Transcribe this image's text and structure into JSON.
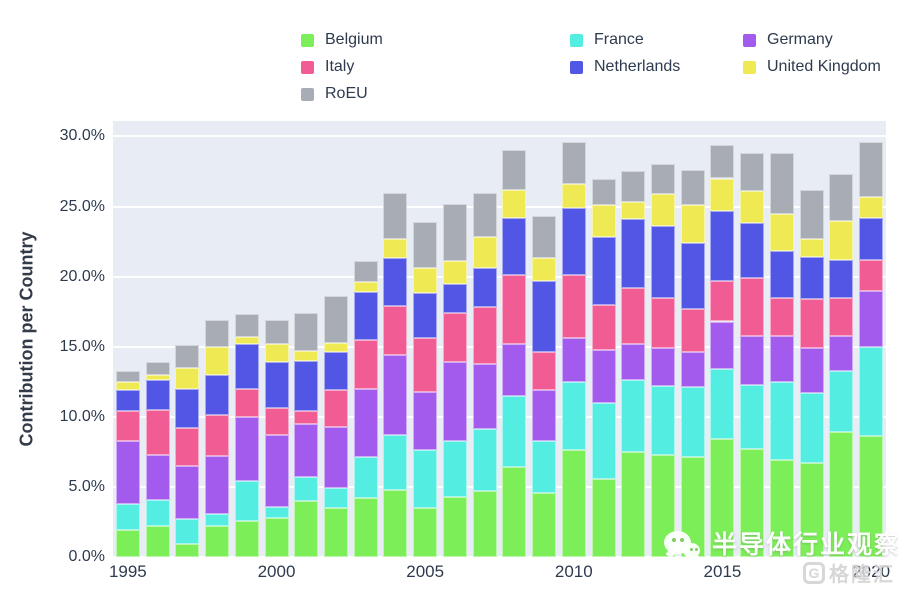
{
  "chart": {
    "y_axis_title": "Contribution per Country",
    "y_max": 31.1,
    "plot_bg": "#e8ecf4",
    "grid_color": "#ffffff",
    "y_ticks": [
      {
        "value": 0,
        "label": "0.0%"
      },
      {
        "value": 5,
        "label": "5.0%"
      },
      {
        "value": 10,
        "label": "10.0%"
      },
      {
        "value": 15,
        "label": "15.0%"
      },
      {
        "value": 20,
        "label": "20.0%"
      },
      {
        "value": 25,
        "label": "25.0%"
      },
      {
        "value": 30,
        "label": "30.0%"
      }
    ],
    "x_ticks": [
      {
        "year": 1995,
        "label": "1995"
      },
      {
        "year": 2000,
        "label": "2000"
      },
      {
        "year": 2005,
        "label": "2005"
      },
      {
        "year": 2010,
        "label": "2010"
      },
      {
        "year": 2015,
        "label": "2015"
      },
      {
        "year": 2020,
        "label": "2020"
      }
    ]
  },
  "chart_data": {
    "type": "bar",
    "stacked": true,
    "title": "",
    "xlabel": "",
    "ylabel": "Contribution per Country",
    "ylim": [
      0,
      30
    ],
    "grid": true,
    "legend_position": "top",
    "categories": [
      1995,
      1996,
      1997,
      1998,
      1999,
      2000,
      2001,
      2002,
      2003,
      2004,
      2005,
      2006,
      2007,
      2008,
      2009,
      2010,
      2011,
      2012,
      2013,
      2014,
      2015,
      2016,
      2017,
      2018,
      2019,
      2020
    ],
    "value_unit": "percent",
    "series": [
      {
        "name": "Belgium",
        "color": "#7cee58",
        "values": [
          1.9,
          2.2,
          0.9,
          2.2,
          2.6,
          2.8,
          4.0,
          3.5,
          4.2,
          4.8,
          3.5,
          4.3,
          4.7,
          6.4,
          4.6,
          7.6,
          5.6,
          7.5,
          7.3,
          7.1,
          8.4,
          7.7,
          6.9,
          6.7,
          8.9,
          8.6
        ]
      },
      {
        "name": "France",
        "color": "#53ede1",
        "values": [
          1.9,
          1.9,
          1.8,
          0.9,
          2.8,
          0.8,
          1.7,
          1.4,
          2.9,
          3.9,
          4.1,
          4.0,
          4.4,
          5.1,
          3.7,
          4.9,
          5.4,
          5.1,
          4.9,
          5.0,
          5.0,
          4.6,
          5.6,
          5.0,
          4.4,
          6.4
        ]
      },
      {
        "name": "Germany",
        "color": "#a35bee",
        "values": [
          4.5,
          3.2,
          3.8,
          4.1,
          4.6,
          5.1,
          3.8,
          4.4,
          4.9,
          5.7,
          4.2,
          5.6,
          4.7,
          3.7,
          3.6,
          3.1,
          3.8,
          2.6,
          2.7,
          2.5,
          3.4,
          3.5,
          3.3,
          3.2,
          2.5,
          4.0
        ]
      },
      {
        "name": "Italy",
        "color": "#f05c93",
        "values": [
          2.1,
          3.2,
          2.7,
          2.9,
          2.0,
          1.9,
          0.9,
          2.6,
          3.5,
          3.5,
          3.8,
          3.5,
          4.0,
          4.9,
          2.7,
          4.5,
          3.2,
          4.0,
          3.6,
          3.1,
          2.9,
          4.1,
          2.7,
          3.5,
          2.7,
          2.2
        ]
      },
      {
        "name": "Netherlands",
        "color": "#5156e4",
        "values": [
          1.5,
          2.1,
          2.8,
          2.9,
          3.2,
          3.3,
          3.6,
          2.7,
          3.4,
          3.4,
          3.2,
          2.1,
          2.8,
          4.1,
          5.1,
          4.8,
          4.8,
          4.9,
          5.1,
          4.7,
          5.0,
          3.9,
          3.3,
          3.0,
          2.7,
          3.0
        ]
      },
      {
        "name": "United Kingdom",
        "color": "#efea54",
        "values": [
          0.6,
          0.4,
          1.5,
          2.0,
          0.5,
          1.3,
          0.7,
          0.7,
          0.7,
          1.4,
          1.8,
          1.6,
          2.2,
          2.0,
          1.6,
          1.7,
          2.3,
          1.2,
          2.3,
          2.7,
          2.3,
          2.3,
          2.7,
          1.3,
          2.8,
          1.5
        ]
      },
      {
        "name": "RoEU",
        "color": "#a8acb5",
        "values": [
          0.8,
          0.9,
          1.6,
          1.9,
          1.6,
          1.7,
          2.7,
          3.3,
          1.5,
          3.3,
          3.3,
          4.1,
          3.2,
          2.8,
          3.0,
          3.0,
          1.9,
          2.2,
          2.1,
          2.5,
          2.4,
          2.7,
          4.3,
          3.5,
          3.3,
          3.9
        ]
      }
    ]
  },
  "watermark": {
    "text": "半导体行业观察",
    "logo_icon": "G",
    "logo_text": "格隆汇"
  }
}
